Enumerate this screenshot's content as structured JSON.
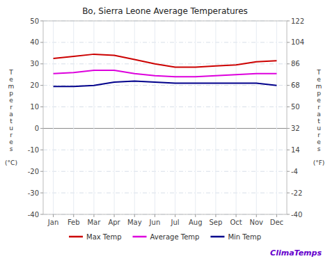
{
  "chart_data": {
    "type": "line",
    "title": "Bo, Sierra Leone Average Temperatures",
    "ylabel": "Temperatures (°C)",
    "y2label": "Temperatures (°F)",
    "annotation": "ClimaTemps",
    "categories": [
      "Jan",
      "Feb",
      "Mar",
      "Apr",
      "May",
      "Jun",
      "Jul",
      "Aug",
      "Sep",
      "Oct",
      "Nov",
      "Dec"
    ],
    "series": [
      {
        "name": "Max Temp",
        "color": "#cc0000",
        "values": [
          32.5,
          33.5,
          34.5,
          34.0,
          32.0,
          30.0,
          28.5,
          28.5,
          29.0,
          29.5,
          31.0,
          31.5
        ]
      },
      {
        "name": "Average Temp",
        "color": "#dd00dd",
        "values": [
          25.5,
          26.0,
          27.0,
          27.0,
          25.5,
          24.5,
          24.0,
          24.0,
          24.5,
          25.0,
          25.5,
          25.5
        ]
      },
      {
        "name": "Min Temp",
        "color": "#00008b",
        "values": [
          19.5,
          19.5,
          20.0,
          21.5,
          22.0,
          21.5,
          21.0,
          21.0,
          21.0,
          21.0,
          21.0,
          20.0
        ]
      }
    ],
    "ylim": [
      -40,
      50
    ],
    "yticks": [
      -40,
      -30,
      -20,
      -10,
      0,
      10,
      20,
      30,
      40,
      50
    ],
    "y2lim": [
      -40,
      122
    ],
    "y2ticks": [
      -40,
      -22,
      -4,
      14,
      32,
      50,
      68,
      86,
      104,
      122
    ],
    "grid": true,
    "legend": "bottom"
  }
}
